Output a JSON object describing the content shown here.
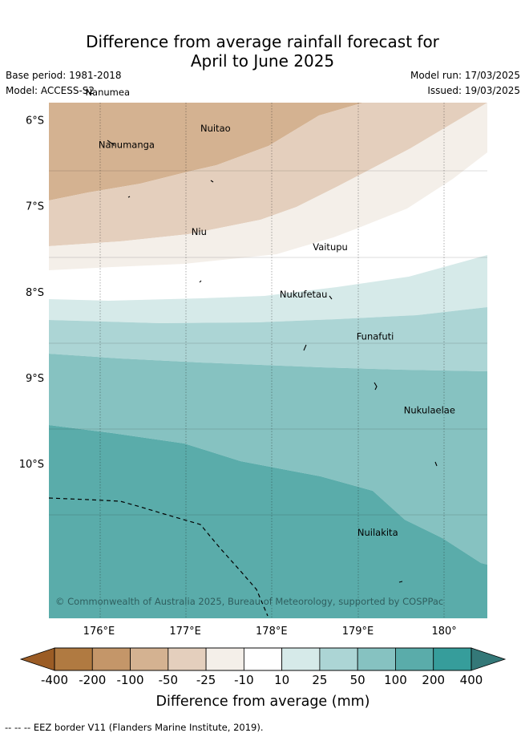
{
  "title": {
    "line1": "Difference from average rainfall forecast for",
    "line2": "April to June 2025"
  },
  "meta": {
    "base_period": "Base period: 1981-2018",
    "model": "Model: ACCESS-S2",
    "model_run": "Model run: 17/03/2025",
    "issued": "Issued: 19/03/2025"
  },
  "map": {
    "x_ticks": [
      "176°E",
      "177°E",
      "178°E",
      "179°E",
      "180°"
    ],
    "y_ticks": [
      "6°S",
      "7°S",
      "8°S",
      "9°S",
      "10°S"
    ],
    "lon_values": [
      176,
      177,
      178,
      179,
      180
    ],
    "lat_values": [
      -6,
      -7,
      -8,
      -9,
      -10
    ],
    "lon_range": [
      175.42,
      180.5
    ],
    "lat_range": [
      -5.8,
      -11.8
    ],
    "islands": [
      {
        "name": "Nanumea",
        "lon": 176.1,
        "lat": -5.68
      },
      {
        "name": "Nuitao",
        "lon": 177.35,
        "lat": -6.1
      },
      {
        "name": "Nanumanga",
        "lon": 176.32,
        "lat": -6.29
      },
      {
        "name": "Niu",
        "lon": 177.16,
        "lat": -7.3
      },
      {
        "name": "Vaitupu",
        "lon": 178.68,
        "lat": -7.48
      },
      {
        "name": "Nukufetau",
        "lon": 178.37,
        "lat": -8.03
      },
      {
        "name": "Funafuti",
        "lon": 179.2,
        "lat": -8.52
      },
      {
        "name": "Nukulaelae",
        "lon": 179.83,
        "lat": -9.38
      },
      {
        "name": "Nuilakita",
        "lon": 179.23,
        "lat": -10.8
      }
    ],
    "credit": "© Commonwealth of Australia 2025, Bureau of Meteorology, supported by COSPPac"
  },
  "legend": {
    "tick_labels": [
      "-400",
      "-200",
      "-100",
      "-50",
      "-25",
      "-10",
      "10",
      "25",
      "50",
      "100",
      "200",
      "400"
    ],
    "bin_colors": [
      "#b07a41",
      "#c49669",
      "#d4b291",
      "#e4cfbd",
      "#f4efe9",
      "#ffffff",
      "#d6eae9",
      "#acd5d5",
      "#86c2c1",
      "#5aacaa",
      "#369d9b"
    ],
    "under_color": "#9b5c25",
    "over_color": "#347878",
    "label": "Difference from average (mm)"
  },
  "footer": {
    "eez_note": "--  --  -- EEZ border V11 (Flanders Marine Institute, 2019)."
  }
}
